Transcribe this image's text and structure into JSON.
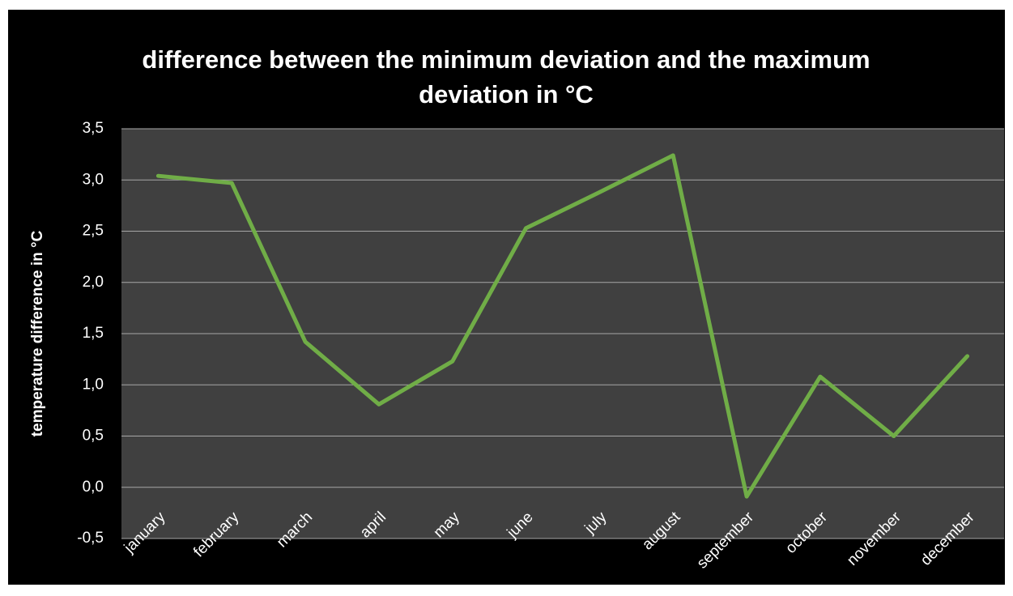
{
  "chart_data": {
    "type": "line",
    "title": "difference between the minimum deviation and the maximum deviation in °C",
    "y_label": "temperature difference in °C",
    "categories": [
      "january",
      "february",
      "march",
      "april",
      "may",
      "june",
      "july",
      "august",
      "september",
      "october",
      "november",
      "december"
    ],
    "series": [
      {
        "color": "#70ad47",
        "values": [
          3.04,
          2.97,
          1.42,
          0.81,
          1.23,
          2.53,
          2.88,
          3.24,
          -0.09,
          1.08,
          0.5,
          1.28
        ]
      }
    ],
    "ylim": [
      -0.5,
      3.5
    ],
    "yticks": [
      {
        "value": -0.5,
        "label": "-0,5"
      },
      {
        "value": 0,
        "label": "0,0"
      },
      {
        "value": 0.5,
        "label": "0,5"
      },
      {
        "value": 1,
        "label": "1,0"
      },
      {
        "value": 1.5,
        "label": "1,5"
      },
      {
        "value": 2,
        "label": "2,0"
      },
      {
        "value": 2.5,
        "label": "2,5"
      },
      {
        "value": 3,
        "label": "3,0"
      },
      {
        "value": 3.5,
        "label": "3,5"
      }
    ],
    "grid": true
  }
}
